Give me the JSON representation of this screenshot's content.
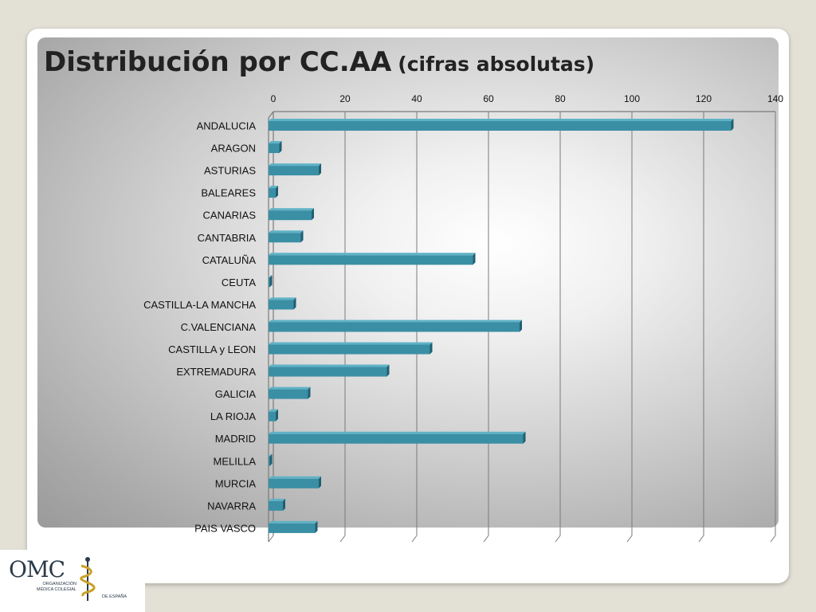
{
  "title": {
    "main": "Distribución por CC.AA",
    "sub": "(cifras absolutas)"
  },
  "logo": {
    "omc": "OMC",
    "org": "ORGANIZACIÓN MÉDICA COLEGIAL",
    "esp": "DE ESPAÑA"
  },
  "colors": {
    "bar": "#3a8fa5",
    "bar_top": "#5fb2c6",
    "bar_side": "#1f5f72",
    "grid": "#7a7a7a"
  },
  "chart_data": {
    "type": "bar",
    "orientation": "horizontal",
    "categories": [
      "ANDALUCIA",
      "ARAGON",
      "ASTURIAS",
      "BALEARES",
      "CANARIAS",
      "CANTABRIA",
      "CATALUÑA",
      "CEUTA",
      "CASTILLA-LA MANCHA",
      "C.VALENCIANA",
      "CASTILLA y LEON",
      "EXTREMADURA",
      "GALICIA",
      "LA RIOJA",
      "MADRID",
      "MELILLA",
      "MURCIA",
      "NAVARRA",
      "PAIS VASCO"
    ],
    "values": [
      129,
      3,
      14,
      2,
      12,
      9,
      57,
      0,
      7,
      70,
      45,
      33,
      11,
      2,
      71,
      0,
      14,
      4,
      13
    ],
    "xlim": [
      0,
      140
    ],
    "xticks": [
      0,
      20,
      40,
      60,
      80,
      100,
      120,
      140
    ],
    "xaxis_position": "top",
    "grid": true
  }
}
